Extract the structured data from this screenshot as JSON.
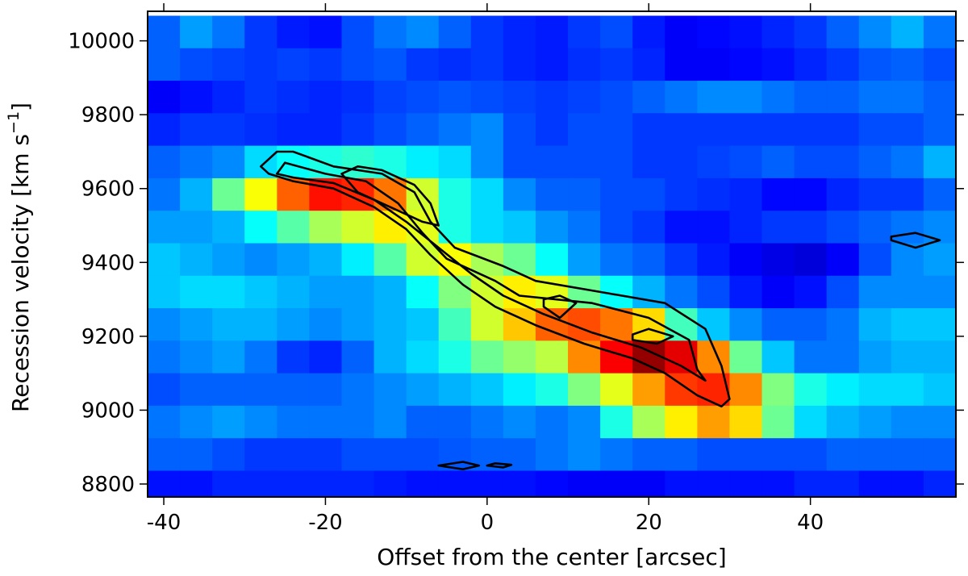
{
  "chart_data": {
    "type": "heatmap",
    "title": "",
    "xlabel": "Offset from the center [arcsec]",
    "ylabel_main": "Recession velocity [km s",
    "ylabel_exp": "−1",
    "ylabel_close": "]",
    "xlim": [
      -42,
      58
    ],
    "ylim": [
      8765,
      10080
    ],
    "x_ticks": [
      -40,
      -20,
      0,
      20,
      40
    ],
    "x_tick_labels": [
      "-40",
      "-20",
      "0",
      "20",
      "40"
    ],
    "y_ticks": [
      8800,
      9000,
      9200,
      9400,
      9600,
      9800,
      10000
    ],
    "y_tick_labels": [
      "8800",
      "9000",
      "9200",
      "9400",
      "9600",
      "9800",
      "10000"
    ],
    "colormap": "jet",
    "cell_dx": 4,
    "cell_dv": 88,
    "x_centers": [
      -40,
      -36,
      -32,
      -28,
      -24,
      -20,
      -16,
      -12,
      -8,
      -4,
      0,
      4,
      8,
      12,
      16,
      20,
      24,
      28,
      32,
      36,
      40,
      44,
      48,
      52,
      56
    ],
    "v_centers": [
      10024,
      9936,
      9848,
      9760,
      9672,
      9584,
      9496,
      9408,
      9320,
      9232,
      9144,
      9056,
      8968,
      8880,
      8792
    ],
    "intensity": [
      [
        0.22,
        0.28,
        0.24,
        0.18,
        0.15,
        0.14,
        0.2,
        0.24,
        0.26,
        0.22,
        0.18,
        0.16,
        0.15,
        0.18,
        0.2,
        0.15,
        0.12,
        0.13,
        0.14,
        0.16,
        0.18,
        0.22,
        0.26,
        0.3,
        0.24
      ],
      [
        0.22,
        0.2,
        0.19,
        0.18,
        0.19,
        0.18,
        0.2,
        0.21,
        0.18,
        0.17,
        0.18,
        0.16,
        0.15,
        0.17,
        0.18,
        0.16,
        0.12,
        0.12,
        0.13,
        0.14,
        0.16,
        0.18,
        0.21,
        0.22,
        0.2
      ],
      [
        0.12,
        0.14,
        0.16,
        0.18,
        0.17,
        0.16,
        0.17,
        0.19,
        0.2,
        0.21,
        0.2,
        0.19,
        0.18,
        0.19,
        0.2,
        0.22,
        0.24,
        0.26,
        0.26,
        0.24,
        0.22,
        0.22,
        0.24,
        0.24,
        0.22
      ],
      [
        0.16,
        0.18,
        0.18,
        0.17,
        0.16,
        0.16,
        0.18,
        0.2,
        0.22,
        0.24,
        0.26,
        0.2,
        0.18,
        0.2,
        0.2,
        0.18,
        0.18,
        0.18,
        0.18,
        0.18,
        0.18,
        0.18,
        0.2,
        0.2,
        0.22
      ],
      [
        0.22,
        0.24,
        0.26,
        0.34,
        0.38,
        0.4,
        0.42,
        0.4,
        0.36,
        0.34,
        0.26,
        0.2,
        0.2,
        0.2,
        0.2,
        0.18,
        0.18,
        0.19,
        0.2,
        0.22,
        0.2,
        0.2,
        0.22,
        0.24,
        0.3
      ],
      [
        0.24,
        0.3,
        0.48,
        0.62,
        0.78,
        0.86,
        0.84,
        0.76,
        0.58,
        0.4,
        0.34,
        0.26,
        0.22,
        0.22,
        0.2,
        0.2,
        0.18,
        0.17,
        0.16,
        0.13,
        0.13,
        0.16,
        0.18,
        0.18,
        0.22
      ],
      [
        0.28,
        0.28,
        0.3,
        0.38,
        0.46,
        0.54,
        0.58,
        0.64,
        0.6,
        0.4,
        0.34,
        0.32,
        0.27,
        0.24,
        0.2,
        0.18,
        0.14,
        0.14,
        0.16,
        0.18,
        0.18,
        0.2,
        0.22,
        0.24,
        0.26
      ],
      [
        0.32,
        0.3,
        0.28,
        0.26,
        0.28,
        0.3,
        0.36,
        0.46,
        0.58,
        0.62,
        0.54,
        0.48,
        0.38,
        0.28,
        0.24,
        0.22,
        0.18,
        0.15,
        0.12,
        0.1,
        0.09,
        0.12,
        0.2,
        0.26,
        0.28
      ],
      [
        0.32,
        0.34,
        0.34,
        0.32,
        0.3,
        0.28,
        0.28,
        0.3,
        0.38,
        0.5,
        0.58,
        0.64,
        0.6,
        0.48,
        0.38,
        0.3,
        0.24,
        0.2,
        0.15,
        0.12,
        0.14,
        0.2,
        0.26,
        0.26,
        0.26
      ],
      [
        0.26,
        0.28,
        0.3,
        0.3,
        0.28,
        0.26,
        0.28,
        0.3,
        0.32,
        0.44,
        0.58,
        0.68,
        0.78,
        0.8,
        0.76,
        0.66,
        0.44,
        0.32,
        0.26,
        0.22,
        0.22,
        0.24,
        0.3,
        0.32,
        0.32
      ],
      [
        0.24,
        0.26,
        0.28,
        0.24,
        0.18,
        0.16,
        0.22,
        0.3,
        0.34,
        0.4,
        0.48,
        0.52,
        0.56,
        0.74,
        0.88,
        0.98,
        0.9,
        0.74,
        0.48,
        0.32,
        0.24,
        0.24,
        0.28,
        0.3,
        0.3
      ],
      [
        0.2,
        0.22,
        0.22,
        0.22,
        0.22,
        0.22,
        0.24,
        0.26,
        0.28,
        0.3,
        0.32,
        0.36,
        0.4,
        0.5,
        0.6,
        0.72,
        0.82,
        0.84,
        0.74,
        0.5,
        0.4,
        0.36,
        0.34,
        0.34,
        0.32
      ],
      [
        0.24,
        0.26,
        0.28,
        0.26,
        0.24,
        0.24,
        0.24,
        0.26,
        0.22,
        0.22,
        0.24,
        0.26,
        0.24,
        0.26,
        0.4,
        0.54,
        0.64,
        0.72,
        0.66,
        0.48,
        0.34,
        0.3,
        0.28,
        0.26,
        0.26
      ],
      [
        0.22,
        0.22,
        0.2,
        0.18,
        0.18,
        0.18,
        0.2,
        0.2,
        0.2,
        0.21,
        0.22,
        0.22,
        0.24,
        0.26,
        0.24,
        0.22,
        0.22,
        0.2,
        0.2,
        0.2,
        0.2,
        0.22,
        0.22,
        0.22,
        0.22
      ],
      [
        0.14,
        0.14,
        0.16,
        0.16,
        0.16,
        0.16,
        0.16,
        0.15,
        0.14,
        0.14,
        0.14,
        0.14,
        0.13,
        0.12,
        0.12,
        0.12,
        0.14,
        0.14,
        0.14,
        0.14,
        0.16,
        0.16,
        0.14,
        0.14,
        0.16
      ]
    ],
    "contours": [
      [
        [
          -26,
          9700
        ],
        [
          -28,
          9660
        ],
        [
          -27,
          9640
        ],
        [
          -24,
          9620
        ],
        [
          -19,
          9600
        ],
        [
          -14,
          9550
        ],
        [
          -10,
          9490
        ],
        [
          -7,
          9420
        ],
        [
          -3,
          9340
        ],
        [
          1,
          9280
        ],
        [
          6,
          9230
        ],
        [
          12,
          9180
        ],
        [
          18,
          9140
        ],
        [
          22,
          9100
        ],
        [
          26,
          9040
        ],
        [
          29,
          9010
        ],
        [
          30,
          9030
        ],
        [
          29,
          9120
        ],
        [
          27,
          9220
        ],
        [
          22,
          9290
        ],
        [
          14,
          9320
        ],
        [
          6,
          9350
        ],
        [
          2,
          9390
        ],
        [
          -4,
          9440
        ],
        [
          -7,
          9510
        ],
        [
          -9,
          9590
        ],
        [
          -13,
          9640
        ],
        [
          -19,
          9660
        ],
        [
          -24,
          9700
        ]
      ],
      [
        [
          -25,
          9670
        ],
        [
          -26,
          9640
        ],
        [
          -24,
          9630
        ],
        [
          -19,
          9615
        ],
        [
          -14,
          9570
        ],
        [
          -10,
          9510
        ],
        [
          -6,
          9440
        ],
        [
          -2,
          9370
        ],
        [
          2,
          9310
        ],
        [
          7,
          9260
        ],
        [
          13,
          9210
        ],
        [
          19,
          9170
        ],
        [
          24,
          9120
        ],
        [
          27,
          9080
        ],
        [
          26,
          9110
        ],
        [
          25,
          9190
        ],
        [
          20,
          9250
        ],
        [
          13,
          9290
        ],
        [
          4,
          9310
        ],
        [
          1,
          9350
        ],
        [
          -5,
          9410
        ],
        [
          -8,
          9480
        ],
        [
          -11,
          9560
        ],
        [
          -15,
          9620
        ],
        [
          -20,
          9640
        ]
      ],
      [
        [
          -18,
          9640
        ],
        [
          -16,
          9590
        ],
        [
          -12,
          9550
        ],
        [
          -8,
          9510
        ],
        [
          -6,
          9500
        ],
        [
          -7,
          9560
        ],
        [
          -9,
          9610
        ],
        [
          -13,
          9650
        ],
        [
          -16,
          9660
        ]
      ],
      [
        [
          7,
          9280
        ],
        [
          9,
          9250
        ],
        [
          11,
          9290
        ],
        [
          9,
          9310
        ],
        [
          7,
          9300
        ]
      ],
      [
        [
          18,
          9190
        ],
        [
          21,
          9180
        ],
        [
          23,
          9200
        ],
        [
          20,
          9220
        ],
        [
          18,
          9205
        ]
      ],
      [
        [
          50,
          9460
        ],
        [
          53,
          9440
        ],
        [
          56,
          9460
        ],
        [
          53,
          9480
        ],
        [
          50,
          9470
        ]
      ],
      [
        [
          -6,
          8850
        ],
        [
          -3,
          8840
        ],
        [
          -1,
          8850
        ],
        [
          -3,
          8860
        ]
      ],
      [
        [
          0,
          8850
        ],
        [
          2,
          8845
        ],
        [
          3,
          8852
        ],
        [
          1,
          8856
        ]
      ]
    ]
  }
}
